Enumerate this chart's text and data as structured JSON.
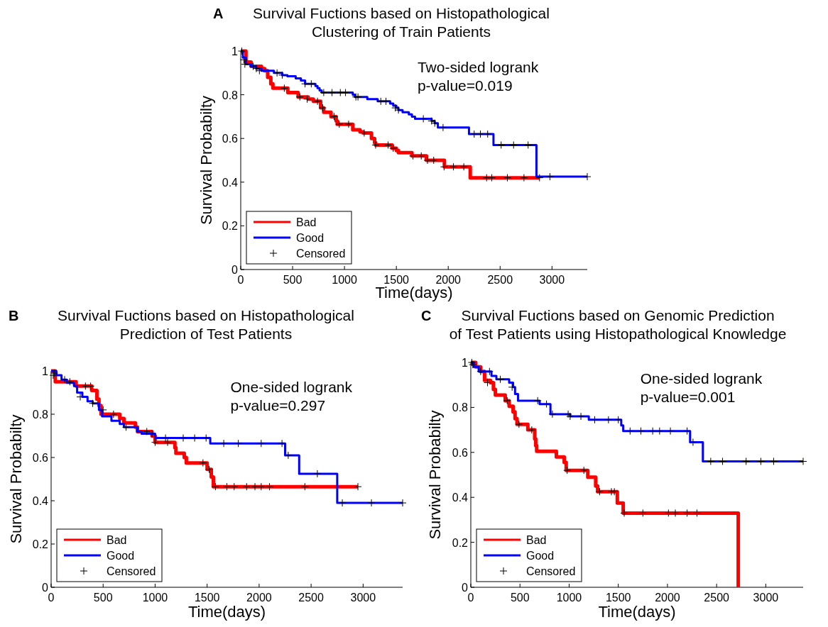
{
  "chart_data": [
    {
      "type": "step",
      "title": "Survival Fuctions based on Histopathological\nClustering of Train Patients",
      "xlabel": "Time(days)",
      "ylabel": "Survival Probabilty",
      "annotations": [
        "A",
        "Two-sided logrank\np-value=0.019"
      ],
      "xlim": [
        0,
        3340
      ],
      "ylim": [
        0,
        1
      ],
      "xticks": [
        0,
        500,
        1000,
        1500,
        2000,
        2500,
        3000
      ],
      "yticks": [
        0,
        0.2,
        0.4,
        0.6,
        0.8,
        1
      ],
      "legend": "bottom left",
      "grid": false,
      "line_style": "solid",
      "series": [
        {
          "name": "Bad",
          "color": "#ff0000",
          "x": [
            0,
            50,
            100,
            200,
            230,
            260,
            290,
            310,
            454,
            470,
            553,
            650,
            700,
            770,
            800,
            870,
            920,
            930,
            1080,
            1150,
            1180,
            1260,
            1290,
            1300,
            1460,
            1500,
            1520,
            1650,
            1790,
            1963,
            2212,
            2880
          ],
          "values": [
            1,
            0.95,
            0.93,
            0.92,
            0.91,
            0.88,
            0.85,
            0.83,
            0.81,
            0.81,
            0.79,
            0.78,
            0.77,
            0.74,
            0.72,
            0.7,
            0.68,
            0.665,
            0.64,
            0.63,
            0.625,
            0.6,
            0.58,
            0.57,
            0.555,
            0.545,
            0.535,
            0.52,
            0.5,
            0.47,
            0.42,
            0.42
          ]
        },
        {
          "name": "Good",
          "color": "#0000ff",
          "x": [
            0,
            20,
            50,
            100,
            150,
            200,
            320,
            400,
            450,
            530,
            580,
            620,
            720,
            740,
            760,
            780,
            1080,
            1100,
            1220,
            1320,
            1440,
            1470,
            1500,
            1520,
            1560,
            1620,
            1650,
            1680,
            1840,
            1870,
            1900,
            2200,
            2436,
            2850,
            3340
          ],
          "values": [
            1,
            0.97,
            0.94,
            0.93,
            0.92,
            0.91,
            0.9,
            0.89,
            0.885,
            0.875,
            0.865,
            0.85,
            0.84,
            0.83,
            0.82,
            0.81,
            0.8,
            0.79,
            0.78,
            0.77,
            0.76,
            0.75,
            0.74,
            0.73,
            0.72,
            0.71,
            0.7,
            0.69,
            0.68,
            0.67,
            0.65,
            0.62,
            0.57,
            0.425,
            0.425
          ]
        },
        {
          "name": "Censored",
          "type": "scatter",
          "color": "#000000",
          "marker": "cross",
          "x": [
            30,
            150,
            420,
            570,
            640,
            740,
            790,
            900,
            950,
            1040,
            1190,
            1300,
            1420,
            1470,
            1660,
            1740,
            1800,
            1860,
            1960,
            2050,
            2150,
            2370,
            2420,
            2570,
            2730,
            2880,
            10,
            40,
            120,
            180,
            350,
            400,
            620,
            680,
            800,
            880,
            960,
            1010,
            1110,
            1130,
            1350,
            1400,
            1490,
            1520,
            1760,
            1840,
            1870,
            1950,
            2250,
            2310,
            2380,
            2510,
            2630,
            2770,
            2980,
            3340
          ],
          "values": [
            0.96,
            0.92,
            0.83,
            0.79,
            0.78,
            0.77,
            0.74,
            0.7,
            0.665,
            0.665,
            0.625,
            0.57,
            0.57,
            0.555,
            0.52,
            0.52,
            0.5,
            0.5,
            0.47,
            0.47,
            0.47,
            0.42,
            0.42,
            0.42,
            0.42,
            0.42,
            1,
            0.94,
            0.93,
            0.91,
            0.9,
            0.89,
            0.85,
            0.85,
            0.81,
            0.81,
            0.81,
            0.81,
            0.79,
            0.79,
            0.77,
            0.77,
            0.74,
            0.73,
            0.69,
            0.68,
            0.67,
            0.65,
            0.62,
            0.62,
            0.62,
            0.57,
            0.57,
            0.57,
            0.425,
            0.425
          ]
        }
      ]
    },
    {
      "type": "step",
      "title": "Survival Fuctions based on Histopathological\nPrediction of Test Patients",
      "xlabel": "Time(days)",
      "ylabel": "Survival Probabilty",
      "annotations": [
        "B",
        "One-sided logrank\np-value=0.297"
      ],
      "xlim": [
        0,
        3380
      ],
      "ylim": [
        0,
        1
      ],
      "xticks": [
        0,
        500,
        1000,
        1500,
        2000,
        2500,
        3000
      ],
      "yticks": [
        0,
        0.2,
        0.4,
        0.6,
        0.8,
        1
      ],
      "legend": "bottom left",
      "grid": false,
      "line_style": "solid",
      "series": [
        {
          "name": "Bad",
          "color": "#ff0000",
          "x": [
            0,
            40,
            240,
            390,
            440,
            460,
            480,
            660,
            700,
            810,
            830,
            970,
            1000,
            1190,
            1200,
            1280,
            1300,
            1500,
            1540,
            1560,
            2950
          ],
          "values": [
            1,
            0.95,
            0.93,
            0.91,
            0.87,
            0.84,
            0.8,
            0.78,
            0.76,
            0.74,
            0.72,
            0.7,
            0.67,
            0.645,
            0.62,
            0.6,
            0.575,
            0.545,
            0.51,
            0.465,
            0.465
          ]
        },
        {
          "name": "Good",
          "color": "#0000ff",
          "x": [
            0,
            50,
            100,
            150,
            220,
            250,
            300,
            350,
            400,
            460,
            490,
            580,
            660,
            700,
            830,
            870,
            1000,
            1530,
            2250,
            2385,
            2751,
            3380
          ],
          "values": [
            1,
            0.98,
            0.96,
            0.945,
            0.93,
            0.9,
            0.88,
            0.86,
            0.85,
            0.82,
            0.79,
            0.77,
            0.755,
            0.74,
            0.72,
            0.71,
            0.69,
            0.665,
            0.61,
            0.525,
            0.39,
            0.39
          ]
        },
        {
          "name": "Censored",
          "type": "scatter",
          "color": "#000000",
          "marker": "cross",
          "x": [
            20,
            180,
            330,
            380,
            600,
            920,
            1000,
            1120,
            1460,
            1520,
            1580,
            1690,
            1760,
            1880,
            1960,
            2020,
            2100,
            2440,
            2950,
            30,
            130,
            280,
            400,
            500,
            720,
            970,
            1100,
            1270,
            1380,
            1490,
            1660,
            1800,
            2020,
            2220,
            2280,
            2560,
            2800,
            3080,
            3380
          ],
          "values": [
            0.98,
            0.95,
            0.93,
            0.93,
            0.8,
            0.72,
            0.67,
            0.67,
            0.575,
            0.545,
            0.465,
            0.465,
            0.465,
            0.465,
            0.465,
            0.465,
            0.465,
            0.465,
            0.465,
            0.99,
            0.96,
            0.88,
            0.85,
            0.82,
            0.74,
            0.71,
            0.69,
            0.69,
            0.69,
            0.69,
            0.665,
            0.665,
            0.665,
            0.665,
            0.61,
            0.525,
            0.39,
            0.39,
            0.39
          ]
        }
      ]
    },
    {
      "type": "step",
      "title": "Survival Fuctions based on Genomic Prediction\nof Test Patients using Histopathological Knowledge",
      "xlabel": "Time(days)",
      "ylabel": "Survival Probabilty",
      "annotations": [
        "C",
        "One-sided logrank\np-value=0.001"
      ],
      "xlim": [
        0,
        3380
      ],
      "ylim": [
        0,
        1
      ],
      "xticks": [
        0,
        500,
        1000,
        1500,
        2000,
        2500,
        3000
      ],
      "yticks": [
        0,
        0.2,
        0.4,
        0.6,
        0.8,
        1
      ],
      "legend": "bottom left",
      "grid": false,
      "line_style": "solid",
      "series": [
        {
          "name": "Bad",
          "color": "#ff0000",
          "x": [
            0,
            50,
            100,
            140,
            200,
            230,
            250,
            350,
            390,
            430,
            450,
            470,
            580,
            650,
            660,
            670,
            870,
            950,
            970,
            1190,
            1270,
            1290,
            1490,
            1550,
            2720
          ],
          "values": [
            1,
            0.98,
            0.96,
            0.92,
            0.91,
            0.88,
            0.855,
            0.83,
            0.805,
            0.78,
            0.75,
            0.725,
            0.7,
            0.66,
            0.63,
            0.605,
            0.58,
            0.555,
            0.52,
            0.49,
            0.45,
            0.425,
            0.375,
            0.33,
            0
          ]
        },
        {
          "name": "Good",
          "color": "#0000ff",
          "x": [
            0,
            30,
            80,
            210,
            260,
            390,
            430,
            450,
            480,
            700,
            810,
            1010,
            1200,
            1530,
            1550,
            2230,
            2360,
            3380
          ],
          "values": [
            1,
            0.98,
            0.96,
            0.94,
            0.925,
            0.91,
            0.89,
            0.86,
            0.83,
            0.815,
            0.77,
            0.76,
            0.745,
            0.72,
            0.695,
            0.645,
            0.56,
            0.56
          ]
        },
        {
          "name": "Censored",
          "type": "scatter",
          "color": "#000000",
          "marker": "cross",
          "x": [
            20,
            170,
            370,
            490,
            620,
            980,
            1150,
            1310,
            1430,
            1460,
            1560,
            1750,
            2010,
            2080,
            2200,
            2300,
            10,
            100,
            190,
            300,
            420,
            680,
            770,
            830,
            990,
            1010,
            1120,
            1260,
            1400,
            1500,
            1620,
            1730,
            1850,
            1920,
            2030,
            2200,
            2260,
            2440,
            2560,
            2800,
            2950,
            3080,
            3380
          ],
          "values": [
            0.99,
            0.91,
            0.83,
            0.725,
            0.7,
            0.52,
            0.52,
            0.425,
            0.425,
            0.425,
            0.33,
            0.33,
            0.33,
            0.33,
            0.33,
            0.33,
            1,
            0.96,
            0.96,
            0.925,
            0.89,
            0.83,
            0.815,
            0.77,
            0.77,
            0.76,
            0.76,
            0.745,
            0.745,
            0.745,
            0.695,
            0.695,
            0.695,
            0.695,
            0.695,
            0.695,
            0.645,
            0.56,
            0.56,
            0.56,
            0.56,
            0.56,
            0.56
          ]
        }
      ]
    }
  ]
}
